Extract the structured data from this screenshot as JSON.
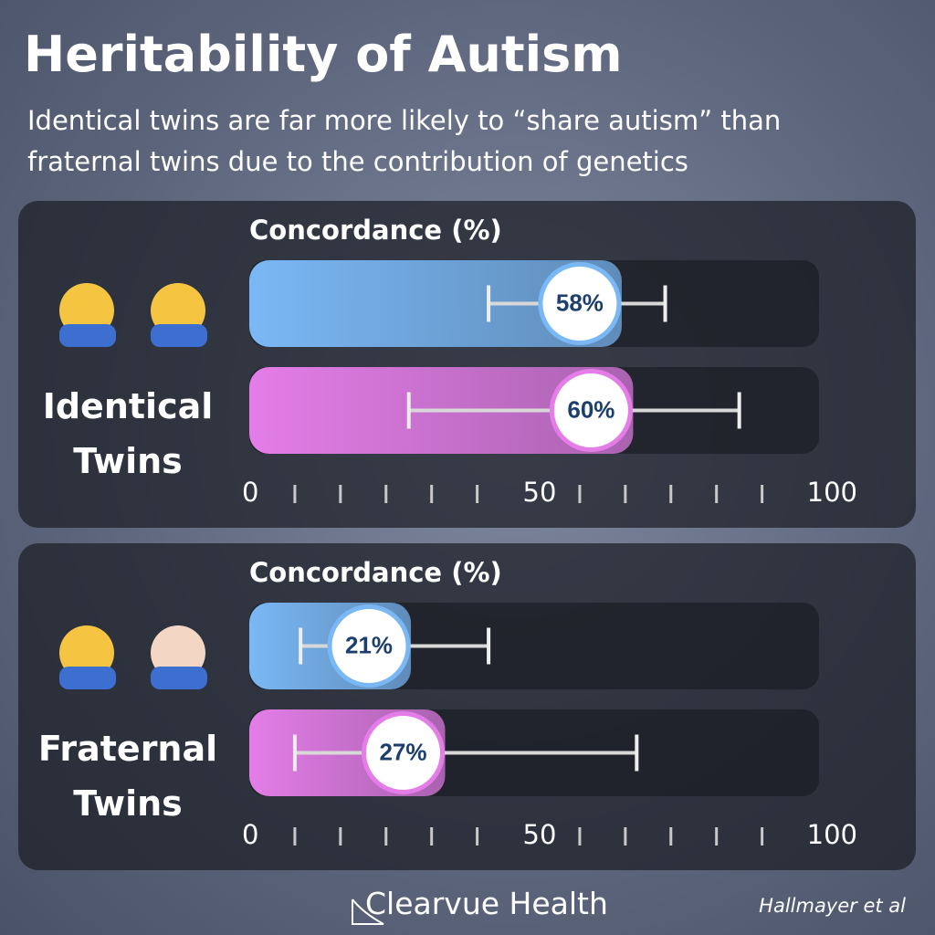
{
  "title": "Heritability of Autism",
  "subtitle": "Identical twins are far more likely to “share autism” than fraternal twins due to the contribution of genetics",
  "chart_data": [
    {
      "type": "bar",
      "label": "Identical Twins",
      "xlabel": "Concordance (%)",
      "values": [
        58,
        60
      ],
      "value_labels": [
        "58%",
        "60%"
      ],
      "lower": [
        42,
        28
      ],
      "upper": [
        73,
        86
      ],
      "colors": [
        "#7ab8f5",
        "#e47de8"
      ],
      "xlim": [
        0,
        100
      ],
      "xticks": [
        0,
        50,
        100
      ],
      "minor_xticks": [
        8,
        16,
        24,
        32,
        40,
        58,
        66,
        74,
        82,
        90
      ]
    },
    {
      "type": "bar",
      "label": "Fraternal Twins",
      "xlabel": "Concordance (%)",
      "values": [
        21,
        27
      ],
      "value_labels": [
        "21%",
        "27%"
      ],
      "lower": [
        9,
        8
      ],
      "upper": [
        42,
        68
      ],
      "colors": [
        "#7ab8f5",
        "#e47de8"
      ],
      "xlim": [
        0,
        100
      ],
      "xticks": [
        0,
        50,
        100
      ],
      "minor_xticks": [
        8,
        16,
        24,
        32,
        40,
        58,
        66,
        74,
        82,
        90
      ]
    }
  ],
  "footer": {
    "brand": "Clearvue Health",
    "source": "Hallmayer et al"
  }
}
